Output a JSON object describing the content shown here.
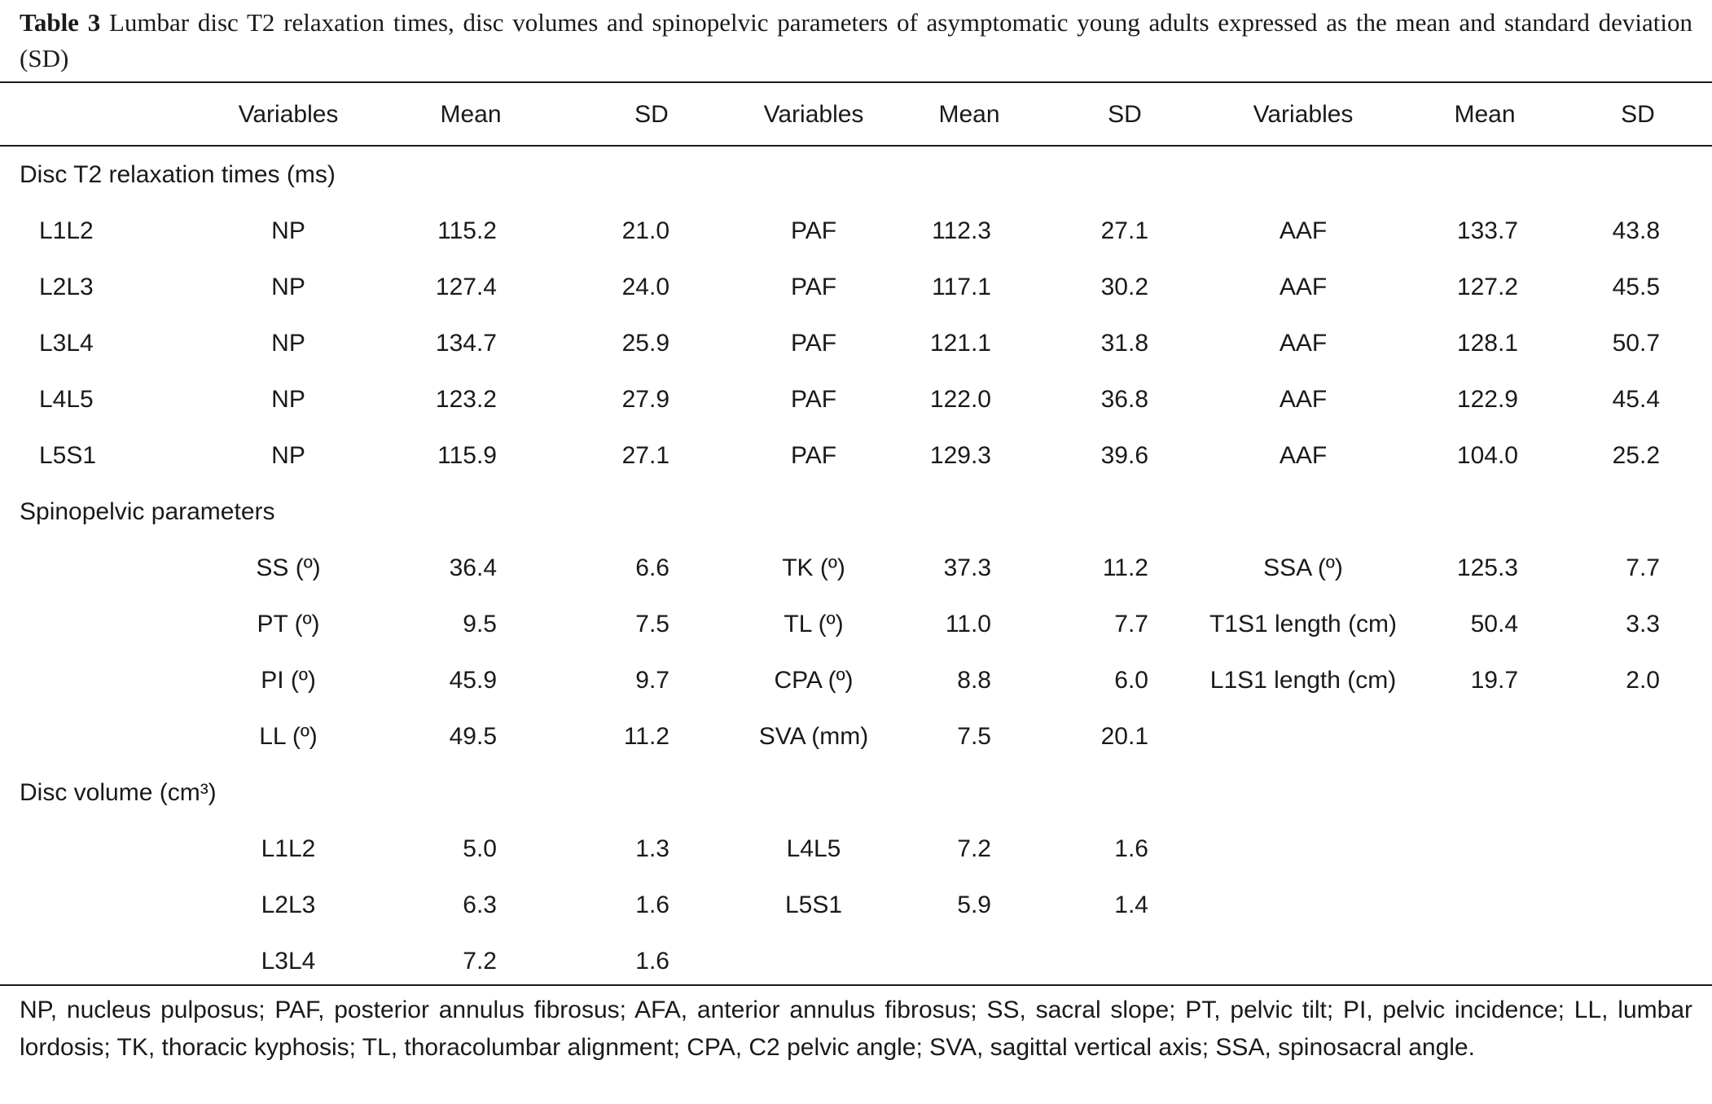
{
  "caption": {
    "label": "Table 3",
    "text": "Lumbar disc T2 relaxation times, disc volumes and spinopelvic parameters of asymptomatic young adults expressed as the mean and standard deviation (SD)"
  },
  "header": {
    "group1": {
      "variables": "Variables",
      "mean": "Mean",
      "sd": "SD"
    },
    "group2": {
      "variables": "Variables",
      "mean": "Mean",
      "sd": "SD"
    },
    "group3": {
      "variables": "Variables",
      "mean": "Mean",
      "sd": "SD"
    }
  },
  "sections": {
    "t2": {
      "title": "Disc T2 relaxation times (ms)",
      "rows": [
        {
          "level": "L1L2",
          "v1": "NP",
          "m1": "115.2",
          "s1": "21.0",
          "v2": "PAF",
          "m2": "112.3",
          "s2": "27.1",
          "v3": "AAF",
          "m3": "133.7",
          "s3": "43.8"
        },
        {
          "level": "L2L3",
          "v1": "NP",
          "m1": "127.4",
          "s1": "24.0",
          "v2": "PAF",
          "m2": "117.1",
          "s2": "30.2",
          "v3": "AAF",
          "m3": "127.2",
          "s3": "45.5"
        },
        {
          "level": "L3L4",
          "v1": "NP",
          "m1": "134.7",
          "s1": "25.9",
          "v2": "PAF",
          "m2": "121.1",
          "s2": "31.8",
          "v3": "AAF",
          "m3": "128.1",
          "s3": "50.7"
        },
        {
          "level": "L4L5",
          "v1": "NP",
          "m1": "123.2",
          "s1": "27.9",
          "v2": "PAF",
          "m2": "122.0",
          "s2": "36.8",
          "v3": "AAF",
          "m3": "122.9",
          "s3": "45.4"
        },
        {
          "level": "L5S1",
          "v1": "NP",
          "m1": "115.9",
          "s1": "27.1",
          "v2": "PAF",
          "m2": "129.3",
          "s2": "39.6",
          "v3": "AAF",
          "m3": "104.0",
          "s3": "25.2"
        }
      ]
    },
    "spino": {
      "title": "Spinopelvic parameters",
      "rows": [
        {
          "v1": "SS (º)",
          "m1": "36.4",
          "s1": "6.6",
          "v2": "TK (º)",
          "m2": "37.3",
          "s2": "11.2",
          "v3": "SSA (º)",
          "m3": "125.3",
          "s3": "7.7"
        },
        {
          "v1": "PT (º)",
          "m1": "9.5",
          "s1": "7.5",
          "v2": "TL (º)",
          "m2": "11.0",
          "s2": "7.7",
          "v3": "T1S1 length (cm)",
          "m3": "50.4",
          "s3": "3.3"
        },
        {
          "v1": "PI (º)",
          "m1": "45.9",
          "s1": "9.7",
          "v2": "CPA (º)",
          "m2": "8.8",
          "s2": "6.0",
          "v3": "L1S1 length (cm)",
          "m3": "19.7",
          "s3": "2.0"
        },
        {
          "v1": "LL (º)",
          "m1": "49.5",
          "s1": "11.2",
          "v2": "SVA (mm)",
          "m2": "7.5",
          "s2": "20.1",
          "v3": "",
          "m3": "",
          "s3": ""
        }
      ]
    },
    "volume": {
      "title": "Disc volume (cm³)",
      "rows": [
        {
          "v1": "L1L2",
          "m1": "5.0",
          "s1": "1.3",
          "v2": "L4L5",
          "m2": "7.2",
          "s2": "1.6"
        },
        {
          "v1": "L2L3",
          "m1": "6.3",
          "s1": "1.6",
          "v2": "L5S1",
          "m2": "5.9",
          "s2": "1.4"
        },
        {
          "v1": "L3L4",
          "m1": "7.2",
          "s1": "1.6",
          "v2": "",
          "m2": "",
          "s2": ""
        }
      ]
    }
  },
  "footnote": "NP, nucleus pulposus; PAF, posterior annulus fibrosus; AFA, anterior annulus fibrosus; SS, sacral slope; PT, pelvic tilt; PI, pelvic incidence; LL, lumbar lordosis; TK, thoracic kyphosis; TL, thoracolumbar alignment; CPA, C2 pelvic angle; SVA, sagittal vertical axis; SSA, spinosacral angle."
}
